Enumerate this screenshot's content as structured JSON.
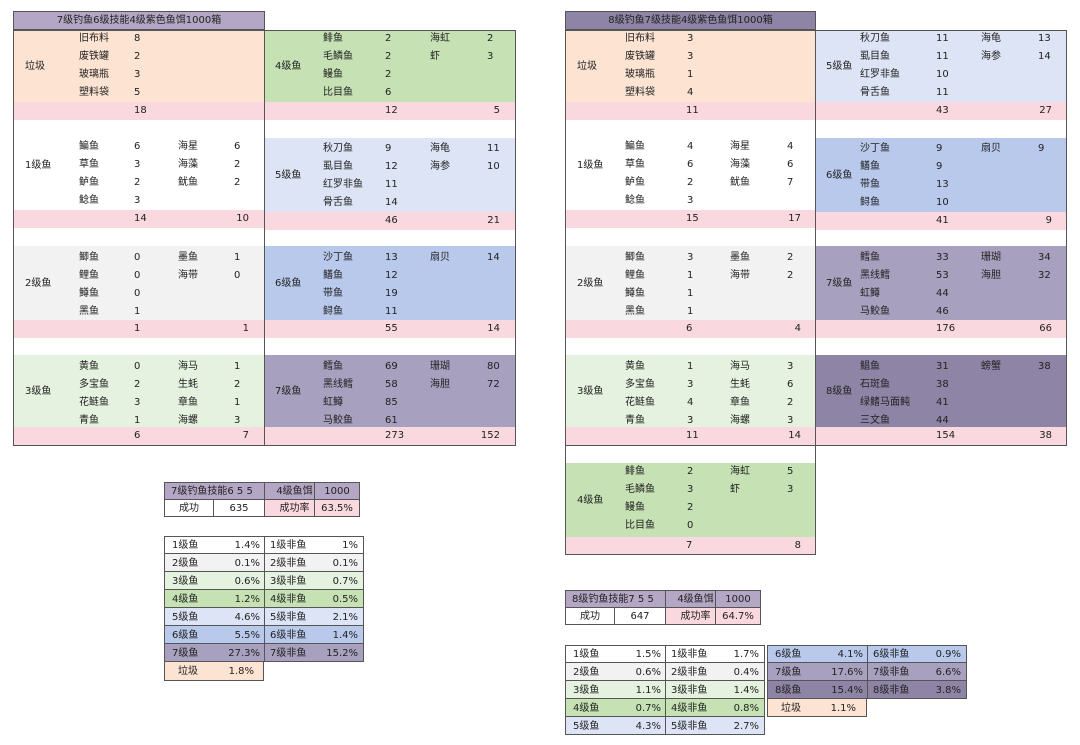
{
  "colors": {
    "header_purple": "#b4a7c5",
    "header_dark_purple": "#8e84a6",
    "trash_bg": "#fce3d2",
    "sum_pink": "#f9d8df",
    "lvl1_bg": "#ffffff",
    "lvl2_bg": "#f2f2f2",
    "lvl3_bg": "#e5f2df",
    "lvl4_bg": "#c6e2b5",
    "lvl5_bg": "#dce4f5",
    "lvl6_bg": "#b8c9ec",
    "lvl7_bg": "#a8a0bf",
    "lvl8_bg": "#8e84a6"
  },
  "left": {
    "title": "7级钓鱼6级技能4级紫色鱼饵1000箱",
    "sections": [
      {
        "key": "trash",
        "label": "垃圾",
        "bg": "#fce3d2",
        "items": [
          [
            "旧布料",
            "8",
            "",
            ""
          ],
          [
            "废铁罐",
            "2",
            "",
            ""
          ],
          [
            "玻璃瓶",
            "3",
            "",
            ""
          ],
          [
            "塑料袋",
            "5",
            "",
            ""
          ]
        ],
        "sum": [
          "18",
          ""
        ]
      },
      {
        "key": "l1",
        "label": "1级鱼",
        "bg": "#ffffff",
        "items": [
          [
            "鳊鱼",
            "6",
            "海星",
            "6"
          ],
          [
            "草鱼",
            "3",
            "海藻",
            "2"
          ],
          [
            "鲈鱼",
            "2",
            "鱿鱼",
            "2"
          ],
          [
            "鲶鱼",
            "3",
            "",
            ""
          ]
        ],
        "sum": [
          "14",
          "10"
        ]
      },
      {
        "key": "l2",
        "label": "2级鱼",
        "bg": "#f2f2f2",
        "items": [
          [
            "鲫鱼",
            "0",
            "墨鱼",
            "1"
          ],
          [
            "鲤鱼",
            "0",
            "海带",
            "0"
          ],
          [
            "鳟鱼",
            "0",
            "",
            ""
          ],
          [
            "黑鱼",
            "1",
            "",
            ""
          ]
        ],
        "sum": [
          "1",
          "1"
        ]
      },
      {
        "key": "l3",
        "label": "3级鱼",
        "bg": "#e5f2df",
        "items": [
          [
            "黄鱼",
            "0",
            "海马",
            "1"
          ],
          [
            "多宝鱼",
            "2",
            "生蚝",
            "2"
          ],
          [
            "花鲢鱼",
            "3",
            "章鱼",
            "1"
          ],
          [
            "青鱼",
            "1",
            "海螺",
            "3"
          ]
        ],
        "sum": [
          "6",
          "7"
        ]
      }
    ],
    "sections_right": [
      {
        "key": "l4",
        "label": "4级鱼",
        "bg": "#c6e2b5",
        "items": [
          [
            "鲱鱼",
            "2",
            "海虹",
            "2"
          ],
          [
            "毛鳞鱼",
            "2",
            "虾",
            "3"
          ],
          [
            "鳗鱼",
            "2",
            "",
            ""
          ],
          [
            "比目鱼",
            "6",
            "",
            ""
          ]
        ],
        "sum": [
          "12",
          "5"
        ]
      },
      {
        "key": "l5",
        "label": "5级鱼",
        "bg": "#dce4f5",
        "items": [
          [
            "秋刀鱼",
            "9",
            "海龟",
            "11"
          ],
          [
            "虱目鱼",
            "12",
            "海参",
            "10"
          ],
          [
            "红罗非鱼",
            "11",
            "",
            ""
          ],
          [
            "骨舌鱼",
            "14",
            "",
            ""
          ]
        ],
        "sum": [
          "46",
          "21"
        ]
      },
      {
        "key": "l6",
        "label": "6级鱼",
        "bg": "#b8c9ec",
        "items": [
          [
            "沙丁鱼",
            "13",
            "扇贝",
            "14"
          ],
          [
            "鳝鱼",
            "12",
            "",
            ""
          ],
          [
            "带鱼",
            "19",
            "",
            ""
          ],
          [
            "鲟鱼",
            "11",
            "",
            ""
          ]
        ],
        "sum": [
          "55",
          "14"
        ]
      },
      {
        "key": "l7",
        "label": "7级鱼",
        "bg": "#a8a0bf",
        "items": [
          [
            "鳕鱼",
            "69",
            "珊瑚",
            "80"
          ],
          [
            "黑线鳕",
            "58",
            "海胆",
            "72"
          ],
          [
            "虹鳟",
            "85",
            "",
            ""
          ],
          [
            "马鲛鱼",
            "61",
            "",
            ""
          ]
        ],
        "sum": [
          "273",
          "152"
        ]
      }
    ],
    "summary": {
      "r1": [
        "7级钓鱼技能6 5 5",
        "4级鱼饵",
        "1000"
      ],
      "r2": [
        "成功",
        "635",
        "成功率",
        "63.5%"
      ]
    },
    "rates": [
      [
        "1级鱼",
        "1.4%",
        "1级非鱼",
        "1%",
        "#ffffff"
      ],
      [
        "2级鱼",
        "0.1%",
        "2级非鱼",
        "0.1%",
        "#f2f2f2"
      ],
      [
        "3级鱼",
        "0.6%",
        "3级非鱼",
        "0.7%",
        "#e5f2df"
      ],
      [
        "4级鱼",
        "1.2%",
        "4级非鱼",
        "0.5%",
        "#c6e2b5"
      ],
      [
        "5级鱼",
        "4.6%",
        "5级非鱼",
        "2.1%",
        "#dce4f5"
      ],
      [
        "6级鱼",
        "5.5%",
        "6级非鱼",
        "1.4%",
        "#b8c9ec"
      ],
      [
        "7级鱼",
        "27.3%",
        "7级非鱼",
        "15.2%",
        "#a8a0bf"
      ]
    ],
    "trash_rate": [
      "垃圾",
      "1.8%"
    ]
  },
  "right": {
    "title": "8级钓鱼7级技能4级紫色鱼饵1000箱",
    "sections": [
      {
        "key": "trash",
        "label": "垃圾",
        "bg": "#fce3d2",
        "items": [
          [
            "旧布料",
            "3",
            "",
            ""
          ],
          [
            "废铁罐",
            "3",
            "",
            ""
          ],
          [
            "玻璃瓶",
            "1",
            "",
            ""
          ],
          [
            "塑料袋",
            "4",
            "",
            ""
          ]
        ],
        "sum": [
          "11",
          ""
        ]
      },
      {
        "key": "l1",
        "label": "1级鱼",
        "bg": "#ffffff",
        "items": [
          [
            "鳊鱼",
            "4",
            "海星",
            "4"
          ],
          [
            "草鱼",
            "6",
            "海藻",
            "6"
          ],
          [
            "鲈鱼",
            "2",
            "鱿鱼",
            "7"
          ],
          [
            "鲶鱼",
            "3",
            "",
            ""
          ]
        ],
        "sum": [
          "15",
          "17"
        ]
      },
      {
        "key": "l2",
        "label": "2级鱼",
        "bg": "#f2f2f2",
        "items": [
          [
            "鲫鱼",
            "3",
            "墨鱼",
            "2"
          ],
          [
            "鲤鱼",
            "1",
            "海带",
            "2"
          ],
          [
            "鳟鱼",
            "1",
            "",
            ""
          ],
          [
            "黑鱼",
            "1",
            "",
            ""
          ]
        ],
        "sum": [
          "6",
          "4"
        ]
      },
      {
        "key": "l3",
        "label": "3级鱼",
        "bg": "#e5f2df",
        "items": [
          [
            "黄鱼",
            "1",
            "海马",
            "3"
          ],
          [
            "多宝鱼",
            "3",
            "生蚝",
            "6"
          ],
          [
            "花鲢鱼",
            "4",
            "章鱼",
            "2"
          ],
          [
            "青鱼",
            "3",
            "海螺",
            "3"
          ]
        ],
        "sum": [
          "11",
          "14"
        ]
      },
      {
        "key": "l4",
        "label": "4级鱼",
        "bg": "#c6e2b5",
        "items": [
          [
            "鲱鱼",
            "2",
            "海虹",
            "5"
          ],
          [
            "毛鳞鱼",
            "3",
            "虾",
            "3"
          ],
          [
            "鳗鱼",
            "2",
            "",
            ""
          ],
          [
            "比目鱼",
            "0",
            "",
            ""
          ]
        ],
        "sum": [
          "7",
          "8"
        ]
      }
    ],
    "sections_right": [
      {
        "key": "l5",
        "label": "5级鱼",
        "bg": "#dce4f5",
        "items": [
          [
            "秋刀鱼",
            "11",
            "海龟",
            "13"
          ],
          [
            "虱目鱼",
            "11",
            "海参",
            "14"
          ],
          [
            "红罗非鱼",
            "10",
            "",
            ""
          ],
          [
            "骨舌鱼",
            "11",
            "",
            ""
          ]
        ],
        "sum": [
          "43",
          "27"
        ]
      },
      {
        "key": "l6",
        "label": "6级鱼",
        "bg": "#b8c9ec",
        "items": [
          [
            "沙丁鱼",
            "9",
            "扇贝",
            "9"
          ],
          [
            "鳝鱼",
            "9",
            "",
            ""
          ],
          [
            "带鱼",
            "13",
            "",
            ""
          ],
          [
            "鲟鱼",
            "10",
            "",
            ""
          ]
        ],
        "sum": [
          "41",
          "9"
        ]
      },
      {
        "key": "l7",
        "label": "7级鱼",
        "bg": "#a8a0bf",
        "items": [
          [
            "鳕鱼",
            "33",
            "珊瑚",
            "34"
          ],
          [
            "黑线鳕",
            "53",
            "海胆",
            "32"
          ],
          [
            "虹鳟",
            "44",
            "",
            ""
          ],
          [
            "马鲛鱼",
            "46",
            "",
            ""
          ]
        ],
        "sum": [
          "176",
          "66"
        ]
      },
      {
        "key": "l8",
        "label": "8级鱼",
        "bg": "#8e84a6",
        "items": [
          [
            "鲳鱼",
            "31",
            "螃蟹",
            "38"
          ],
          [
            "石斑鱼",
            "38",
            "",
            ""
          ],
          [
            "绿鳍马面鲀",
            "41",
            "",
            ""
          ],
          [
            "三文鱼",
            "44",
            "",
            ""
          ]
        ],
        "sum": [
          "154",
          "38"
        ]
      }
    ],
    "summary": {
      "r1": [
        "8级钓鱼技能7 5 5",
        "4级鱼饵",
        "1000"
      ],
      "r2": [
        "成功",
        "647",
        "成功率",
        "64.7%"
      ]
    },
    "rates_a": [
      [
        "1级鱼",
        "1.5%",
        "1级非鱼",
        "1.7%",
        "#ffffff"
      ],
      [
        "2级鱼",
        "0.6%",
        "2级非鱼",
        "0.4%",
        "#f2f2f2"
      ],
      [
        "3级鱼",
        "1.1%",
        "3级非鱼",
        "1.4%",
        "#e5f2df"
      ],
      [
        "4级鱼",
        "0.7%",
        "4级非鱼",
        "0.8%",
        "#c6e2b5"
      ],
      [
        "5级鱼",
        "4.3%",
        "5级非鱼",
        "2.7%",
        "#dce4f5"
      ]
    ],
    "rates_b": [
      [
        "6级鱼",
        "4.1%",
        "6级非鱼",
        "0.9%",
        "#b8c9ec"
      ],
      [
        "7级鱼",
        "17.6%",
        "7级非鱼",
        "6.6%",
        "#a8a0bf"
      ],
      [
        "8级鱼",
        "15.4%",
        "8级非鱼",
        "3.8%",
        "#8e84a6"
      ]
    ],
    "trash_rate": [
      "垃圾",
      "1.1%"
    ]
  }
}
